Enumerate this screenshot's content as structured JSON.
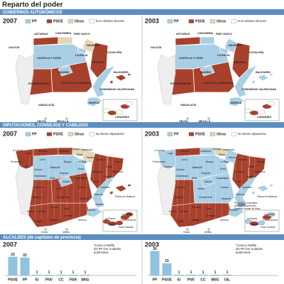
{
  "title": "Reparto del poder",
  "sections": [
    {
      "heading": "GOBIERNOS AUTONÓMICOS",
      "legend": [
        {
          "name": "PP",
          "color": "#a9cfe6"
        },
        {
          "name": "PSOE",
          "color": "#a8412c"
        },
        {
          "name": "Otros",
          "color": "#e3d6b5"
        },
        {
          "name": "No se celebraron elecciones",
          "color": "#ffffff"
        }
      ],
      "maps": [
        {
          "year": "2007",
          "labels": [
            "ASTURIAS",
            "CANTABRIA",
            "PAÍS VASCO",
            "GALICIA",
            "NAVARRA",
            "CASTILLA Y LEÓN",
            "LA RIOJA",
            "ARAGÓN",
            "CATALUÑA",
            "MADRID",
            "EXTREMADURA",
            "CASTILLA-LA MANCHA",
            "BALEARES",
            "COMUNIDAD VALENCIANA",
            "MURCIA",
            "ANDALUCÍA",
            "CEUTA",
            "MELILLA",
            "CANARIAS"
          ]
        },
        {
          "year": "2003",
          "labels": [
            "ASTURIAS",
            "CANTABRIA",
            "PAÍS VASCO",
            "GALICIA",
            "NAVARRA",
            "CASTILLA Y LEÓN",
            "LA RIOJA",
            "ARAGÓN",
            "CATALUÑA",
            "MADRID",
            "EXTREMADURA",
            "CASTILLA-LA MANCHA",
            "BALEARES",
            "COMUNIDAD VALENCIANA",
            "MURCIA",
            "ANDALUCÍA",
            "CEUTA",
            "MELILLA",
            "CANARIAS"
          ]
        }
      ]
    },
    {
      "heading": "DIPUTACIONES, CONSEJOS Y CABILDOS",
      "legend": [
        {
          "name": "PP",
          "color": "#a9cfe6"
        },
        {
          "name": "PSOE",
          "color": "#a8412c"
        },
        {
          "name": "Otros",
          "color": "#e3d6b5"
        },
        {
          "name": "No tienen diputación",
          "color": "#ffffff"
        }
      ],
      "maps": [
        {
          "year": "2007",
          "labels": [
            "A Coruña",
            "Lugo",
            "Asturias",
            "Cantabria",
            "Vizcaya",
            "Guipúzcoa",
            "Álava",
            "Navarra",
            "Pontevedra",
            "Ourense",
            "León",
            "Burgos",
            "La Rioja",
            "Huesca",
            "Girona",
            "Lleida",
            "Barcelona",
            "Tarragona",
            "Zamora",
            "Valladolid",
            "Soria",
            "Zaragoza",
            "Salamanca",
            "Segovia",
            "Ávila",
            "Madrid",
            "Guadalajara",
            "Teruel",
            "Castellón",
            "Cáceres",
            "Toledo",
            "Cuenca",
            "Valencia",
            "Badajoz",
            "Ciudad Real",
            "Albacete",
            "Alicante",
            "Huelva",
            "Sevilla",
            "Córdoba",
            "Jaén",
            "Granada",
            "Murcia",
            "Almería",
            "Cádiz",
            "Málaga",
            "Palma de Mallorca",
            "Ceuta",
            "Melilla",
            "Lanzarote",
            "Fuerteventura",
            "La Palma",
            "Tenerife",
            "Gran Canaria"
          ]
        },
        {
          "year": "2003",
          "labels": [
            "A Coruña",
            "Lugo",
            "Asturias",
            "Cantabria",
            "Vizcaya",
            "Guipúzcoa",
            "Álava",
            "Navarra",
            "Pontevedra",
            "Ourense",
            "León",
            "Burgos",
            "La Rioja",
            "Huesca",
            "Girona",
            "Lleida",
            "Barcelona",
            "Tarragona",
            "Zamora",
            "Valladolid",
            "Soria",
            "Zaragoza",
            "Salamanca",
            "Segovia",
            "Ávila",
            "Madrid",
            "Guadalajara",
            "Teruel",
            "Castellón",
            "Cáceres",
            "Toledo",
            "Cuenca",
            "Valencia",
            "Badajoz",
            "Ciudad Real",
            "Albacete",
            "Alicante",
            "Huelva",
            "Sevilla",
            "Córdoba",
            "Jaén",
            "Granada",
            "Murcia",
            "Almería",
            "Cádiz",
            "Málaga",
            "Palma de Mallorca",
            "Ceuta",
            "Melilla",
            "Lanzarote",
            "Fuerteventura",
            "La Palma",
            "Tenerife",
            "Gran Canaria"
          ],
          "note": [
            "*En 2003 Formentera",
            "pertenecía al mismo",
            "Consejo Insular de Ibiza"
          ]
        }
      ]
    }
  ],
  "alcaldes_heading": "ALCALDES (de capitales de provincia)",
  "chart_data": [
    {
      "type": "bar",
      "title": "2007",
      "categories": [
        "PSOE",
        "PP",
        "IU",
        "PNV",
        "CC",
        "PAR",
        "BNG"
      ],
      "values": [
        23,
        22,
        1,
        1,
        1,
        1,
        1
      ],
      "color": "#8fc3e0",
      "note": [
        "*Ceuta y Melilla",
        "del PP son ciudades",
        "autónomas"
      ]
    },
    {
      "type": "bar",
      "title": "2003",
      "categories": [
        "PP",
        "PSOE",
        "IU",
        "PNV",
        "CC",
        "BNG",
        "GIL"
      ],
      "values": [
        30,
        15,
        1,
        1,
        1,
        1,
        1
      ],
      "color": "#8fc3e0",
      "note": [
        "*Ceuta y Melilla",
        "del PP son ciudades",
        "autónomas"
      ]
    }
  ]
}
